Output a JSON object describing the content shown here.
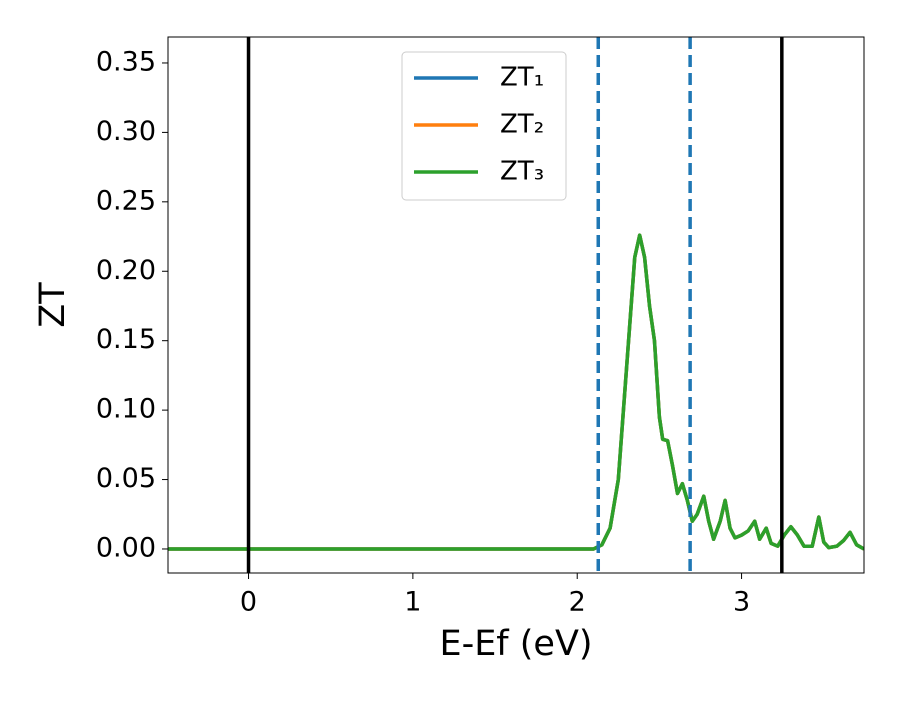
{
  "chart_data": {
    "type": "line",
    "xlabel": "E-Ef (eV)",
    "ylabel": "ZT",
    "x": [
      -0.49,
      0,
      1,
      2,
      2.1,
      2.15,
      2.2,
      2.25,
      2.3,
      2.35,
      2.38,
      2.41,
      2.44,
      2.47,
      2.5,
      2.52,
      2.55,
      2.58,
      2.61,
      2.64,
      2.67,
      2.7,
      2.73,
      2.77,
      2.8,
      2.83,
      2.87,
      2.9,
      2.93,
      2.96,
      3.0,
      3.04,
      3.08,
      3.11,
      3.15,
      3.18,
      3.22,
      3.26,
      3.3,
      3.34,
      3.38,
      3.43,
      3.47,
      3.5,
      3.53,
      3.58,
      3.62,
      3.66,
      3.7,
      3.745
    ],
    "series": [
      {
        "name": "ZT₁",
        "color": "#1f77b4",
        "values": [
          0,
          0,
          0,
          0,
          0,
          0.003,
          0.015,
          0.05,
          0.13,
          0.21,
          0.226,
          0.21,
          0.175,
          0.15,
          0.095,
          0.079,
          0.078,
          0.06,
          0.04,
          0.047,
          0.035,
          0.02,
          0.025,
          0.038,
          0.02,
          0.007,
          0.02,
          0.035,
          0.015,
          0.008,
          0.01,
          0.013,
          0.02,
          0.007,
          0.015,
          0.004,
          0.002,
          0.01,
          0.016,
          0.01,
          0.002,
          0.002,
          0.023,
          0.005,
          0.001,
          0.002,
          0.006,
          0.012,
          0.003,
          0
        ]
      },
      {
        "name": "ZT₂",
        "color": "#ff7f0e",
        "values": [
          0,
          0,
          0,
          0,
          0,
          0.003,
          0.015,
          0.05,
          0.13,
          0.21,
          0.226,
          0.21,
          0.175,
          0.15,
          0.095,
          0.079,
          0.078,
          0.06,
          0.04,
          0.047,
          0.035,
          0.02,
          0.025,
          0.038,
          0.02,
          0.007,
          0.02,
          0.035,
          0.015,
          0.008,
          0.01,
          0.013,
          0.02,
          0.007,
          0.015,
          0.004,
          0.002,
          0.01,
          0.016,
          0.01,
          0.002,
          0.002,
          0.023,
          0.005,
          0.001,
          0.002,
          0.006,
          0.012,
          0.003,
          0
        ]
      },
      {
        "name": "ZT₃",
        "color": "#2ca02c",
        "values": [
          0,
          0,
          0,
          0,
          0,
          0.003,
          0.015,
          0.05,
          0.13,
          0.21,
          0.226,
          0.21,
          0.175,
          0.15,
          0.095,
          0.079,
          0.078,
          0.06,
          0.04,
          0.047,
          0.035,
          0.02,
          0.025,
          0.038,
          0.02,
          0.007,
          0.02,
          0.035,
          0.015,
          0.008,
          0.01,
          0.013,
          0.02,
          0.007,
          0.015,
          0.004,
          0.002,
          0.01,
          0.016,
          0.01,
          0.002,
          0.002,
          0.023,
          0.005,
          0.001,
          0.002,
          0.006,
          0.012,
          0.003,
          0
        ]
      }
    ],
    "vlines": [
      {
        "x": 0,
        "color": "#000000",
        "style": "solid"
      },
      {
        "x": 3.245,
        "color": "#000000",
        "style": "solid"
      },
      {
        "x": 2.128,
        "color": "#1f77b4",
        "style": "dashed"
      },
      {
        "x": 2.687,
        "color": "#1f77b4",
        "style": "dashed"
      }
    ],
    "xlim": [
      -0.49,
      3.745
    ],
    "xticks": [
      0,
      1,
      2,
      3
    ],
    "ylim": [
      -0.0173,
      0.3687
    ],
    "yticks": [
      {
        "value": 0,
        "label": "0.00"
      },
      {
        "value": 0.05,
        "label": "0.05"
      },
      {
        "value": 0.1,
        "label": "0.10"
      },
      {
        "value": 0.15,
        "label": "0.15"
      },
      {
        "value": 0.2,
        "label": "0.20"
      },
      {
        "value": 0.25,
        "label": "0.25"
      },
      {
        "value": 0.3,
        "label": "0.30"
      },
      {
        "value": 0.35,
        "label": "0.35"
      }
    ],
    "grid": false,
    "legend": "upper center"
  }
}
